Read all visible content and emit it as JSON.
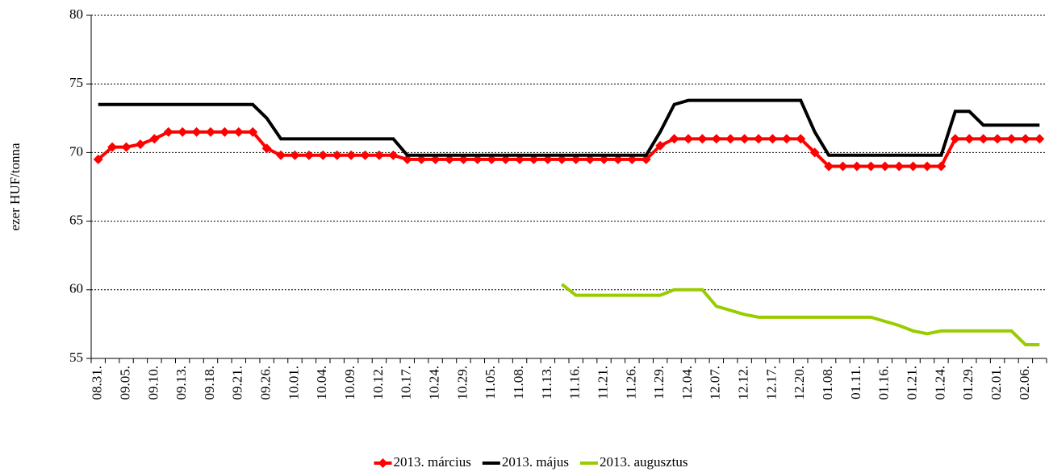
{
  "chart_data": {
    "type": "line",
    "ylabel": "ezer HUF/tonna",
    "categories": [
      "08.31.",
      null,
      "09.05.",
      null,
      "09.10.",
      null,
      "09.13.",
      null,
      "09.18.",
      null,
      "09.21.",
      null,
      "09.26.",
      null,
      "10.01.",
      null,
      "10.04.",
      null,
      "10.09.",
      null,
      "10.12.",
      null,
      "10.17.",
      null,
      "10.24.",
      null,
      "10.29.",
      null,
      "11.05.",
      null,
      "11.08.",
      null,
      "11.13.",
      null,
      "11.16.",
      null,
      "11.21.",
      null,
      "11.26.",
      null,
      "11.29.",
      null,
      "12.04.",
      null,
      "12.07.",
      null,
      "12.12.",
      null,
      "12.17.",
      null,
      "12.20.",
      null,
      "01.08.",
      null,
      "01.11.",
      null,
      "01.16.",
      null,
      "01.21.",
      null,
      "01.24.",
      null,
      "01.29.",
      null,
      "02.01.",
      null,
      "02.06.",
      null
    ],
    "series": [
      {
        "name": "2013. március",
        "color": "#ff0000",
        "marker": "diamond",
        "values": [
          69.5,
          70.4,
          70.4,
          70.6,
          71.0,
          71.5,
          71.5,
          71.5,
          71.5,
          71.5,
          71.5,
          71.5,
          70.3,
          69.8,
          69.8,
          69.8,
          69.8,
          69.8,
          69.8,
          69.8,
          69.8,
          69.8,
          69.5,
          69.5,
          69.5,
          69.5,
          69.5,
          69.5,
          69.5,
          69.5,
          69.5,
          69.5,
          69.5,
          69.5,
          69.5,
          69.5,
          69.5,
          69.5,
          69.5,
          69.5,
          70.5,
          71.0,
          71.0,
          71.0,
          71.0,
          71.0,
          71.0,
          71.0,
          71.0,
          71.0,
          71.0,
          70.0,
          69.0,
          69.0,
          69.0,
          69.0,
          69.0,
          69.0,
          69.0,
          69.0,
          69.0,
          71.0,
          71.0,
          71.0,
          71.0,
          71.0,
          71.0,
          71.0
        ]
      },
      {
        "name": "2013. május",
        "color": "#000000",
        "values": [
          73.5,
          73.5,
          73.5,
          73.5,
          73.5,
          73.5,
          73.5,
          73.5,
          73.5,
          73.5,
          73.5,
          73.5,
          72.5,
          71.0,
          71.0,
          71.0,
          71.0,
          71.0,
          71.0,
          71.0,
          71.0,
          71.0,
          69.8,
          69.8,
          69.8,
          69.8,
          69.8,
          69.8,
          69.8,
          69.8,
          69.8,
          69.8,
          69.8,
          69.8,
          69.8,
          69.8,
          69.8,
          69.8,
          69.8,
          69.8,
          71.5,
          73.5,
          73.8,
          73.8,
          73.8,
          73.8,
          73.8,
          73.8,
          73.8,
          73.8,
          73.8,
          71.5,
          69.8,
          69.8,
          69.8,
          69.8,
          69.8,
          69.8,
          69.8,
          69.8,
          69.8,
          73.0,
          73.0,
          72.0,
          72.0,
          72.0,
          72.0,
          72.0
        ]
      },
      {
        "name": "2013. augusztus",
        "color": "#99cc00",
        "values": [
          null,
          null,
          null,
          null,
          null,
          null,
          null,
          null,
          null,
          null,
          null,
          null,
          null,
          null,
          null,
          null,
          null,
          null,
          null,
          null,
          null,
          null,
          null,
          null,
          null,
          null,
          null,
          null,
          null,
          null,
          null,
          null,
          null,
          60.4,
          59.6,
          59.6,
          59.6,
          59.6,
          59.6,
          59.6,
          59.6,
          60.0,
          60.0,
          60.0,
          58.8,
          58.5,
          58.2,
          58.0,
          58.0,
          58.0,
          58.0,
          58.0,
          58.0,
          58.0,
          58.0,
          58.0,
          57.7,
          57.4,
          57.0,
          56.8,
          57.0,
          57.0,
          57.0,
          57.0,
          57.0,
          57.0,
          56.0,
          56.0
        ]
      }
    ],
    "ylim": [
      55,
      80
    ],
    "yticks": [
      55,
      60,
      65,
      70,
      75,
      80
    ],
    "grid": true,
    "legend": "bottom"
  }
}
